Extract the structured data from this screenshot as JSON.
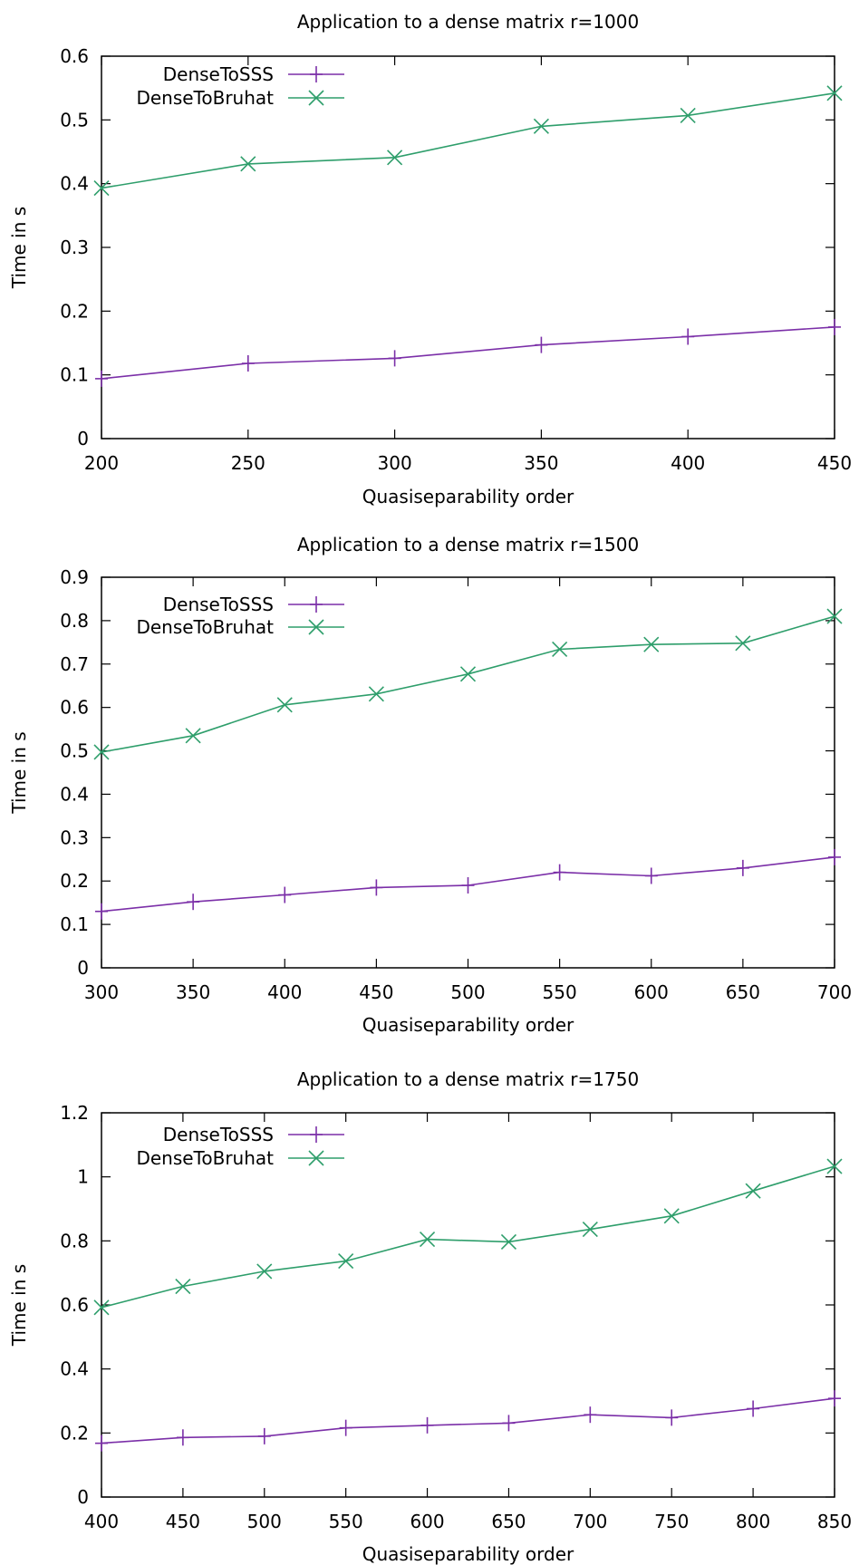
{
  "chart_data": [
    {
      "type": "line",
      "title": "Application to a dense matrix r=1000",
      "xlabel": "Quasiseparability order",
      "ylabel": "Time in s",
      "x": [
        200,
        250,
        300,
        350,
        400,
        450
      ],
      "xlim": [
        200,
        450
      ],
      "ylim": [
        0,
        0.6
      ],
      "xticks": [
        "200",
        "250",
        "300",
        "350",
        "400",
        "450"
      ],
      "yticks": [
        "0",
        "0.1",
        "0.2",
        "0.3",
        "0.4",
        "0.5",
        "0.6"
      ],
      "legend_position": "top-left",
      "grid": false,
      "series": [
        {
          "name": "DenseToSSS",
          "marker": "plus",
          "color": "#7b2fa8",
          "values": [
            0.094,
            0.118,
            0.126,
            0.147,
            0.16,
            0.175
          ]
        },
        {
          "name": "DenseToBruhat",
          "marker": "x",
          "color": "#2e9e6b",
          "values": [
            0.393,
            0.431,
            0.441,
            0.49,
            0.507,
            0.542
          ]
        }
      ]
    },
    {
      "type": "line",
      "title": "Application to a dense matrix r=1500",
      "xlabel": "Quasiseparability order",
      "ylabel": "Time in s",
      "x": [
        300,
        350,
        400,
        450,
        500,
        550,
        600,
        650,
        700
      ],
      "xlim": [
        300,
        700
      ],
      "ylim": [
        0,
        0.9
      ],
      "xticks": [
        "300",
        "350",
        "400",
        "450",
        "500",
        "550",
        "600",
        "650",
        "700"
      ],
      "yticks": [
        "0",
        "0.1",
        "0.2",
        "0.3",
        "0.4",
        "0.5",
        "0.6",
        "0.7",
        "0.8",
        "0.9"
      ],
      "legend_position": "top-left",
      "grid": false,
      "series": [
        {
          "name": "DenseToSSS",
          "marker": "plus",
          "color": "#7b2fa8",
          "values": [
            0.13,
            0.152,
            0.168,
            0.185,
            0.19,
            0.22,
            0.212,
            0.23,
            0.255
          ]
        },
        {
          "name": "DenseToBruhat",
          "marker": "x",
          "color": "#2e9e6b",
          "values": [
            0.497,
            0.535,
            0.606,
            0.631,
            0.677,
            0.734,
            0.745,
            0.748,
            0.81
          ]
        }
      ]
    },
    {
      "type": "line",
      "title": "Application to a dense matrix r=1750",
      "xlabel": "Quasiseparability order",
      "ylabel": "Time in s",
      "x": [
        400,
        450,
        500,
        550,
        600,
        650,
        700,
        750,
        800,
        850
      ],
      "xlim": [
        400,
        850
      ],
      "ylim": [
        0,
        1.2
      ],
      "xticks": [
        "400",
        "450",
        "500",
        "550",
        "600",
        "650",
        "700",
        "750",
        "800",
        "850"
      ],
      "yticks": [
        "0",
        "0.2",
        "0.4",
        "0.6",
        "0.8",
        "1",
        "1.2"
      ],
      "legend_position": "top-left",
      "grid": false,
      "series": [
        {
          "name": "DenseToSSS",
          "marker": "plus",
          "color": "#7b2fa8",
          "values": [
            0.168,
            0.186,
            0.19,
            0.216,
            0.224,
            0.231,
            0.257,
            0.248,
            0.276,
            0.308
          ]
        },
        {
          "name": "DenseToBruhat",
          "marker": "x",
          "color": "#2e9e6b",
          "values": [
            0.592,
            0.658,
            0.705,
            0.737,
            0.805,
            0.797,
            0.836,
            0.878,
            0.956,
            1.033
          ]
        }
      ]
    }
  ]
}
